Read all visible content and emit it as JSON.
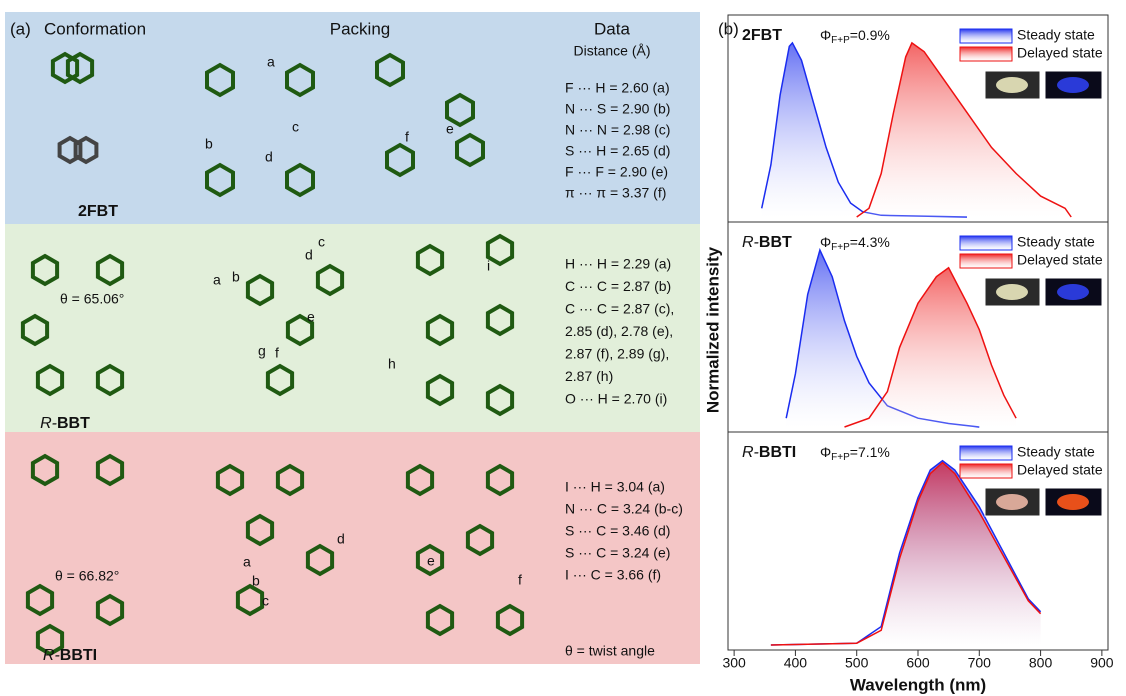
{
  "left": {
    "tag": "(a)",
    "headers": {
      "conformation": "Conformation",
      "packing": "Packing",
      "data": "Data",
      "distance": "Distance (Å)"
    },
    "rows": [
      {
        "label_italic": "",
        "label_bold": "2FBT",
        "angle": "",
        "data": [
          "F ··· H = 2.60 (a)",
          "N ··· S = 2.90 (b)",
          "N ··· N = 2.98 (c)",
          "S ··· H = 2.65 (d)",
          "F ··· F = 2.90 (e)",
          "π ··· π = 3.37 (f)"
        ],
        "contacts": [
          "a",
          "b",
          "c",
          "d",
          "e",
          "f"
        ]
      },
      {
        "label_italic": "R-",
        "label_bold": "BBT",
        "angle": "θ = 65.06°",
        "data": [
          "H ··· H = 2.29 (a)",
          "C ··· C = 2.87 (b)",
          "C ··· C = 2.87 (c),",
          "2.85 (d), 2.78 (e),",
          "2.87 (f), 2.89 (g),",
          "2.87 (h)",
          "O ··· H = 2.70 (i)"
        ],
        "contacts": [
          "a",
          "b",
          "c",
          "d",
          "e",
          "f",
          "g",
          "h",
          "i"
        ]
      },
      {
        "label_italic": "R-",
        "label_bold": "BBTI",
        "angle": "θ = 66.82°",
        "data": [
          "I ··· H = 3.04 (a)",
          "N ··· C = 3.24 (b-c)",
          "S ··· C = 3.46 (d)",
          "S ··· C = 3.24 (e)",
          "I ··· C = 3.66 (f)"
        ],
        "contacts": [
          "a",
          "b",
          "c",
          "d",
          "e",
          "f"
        ]
      }
    ],
    "theta_note": "θ = twist angle"
  },
  "spectra": {
    "tag": "(b)",
    "xlabel": "Wavelength (nm)",
    "ylabel": "Normalized intensity",
    "xlim": [
      290,
      910
    ],
    "xticks": [
      300,
      400,
      500,
      600,
      700,
      800,
      900
    ],
    "ylim": [
      0,
      1.08
    ],
    "legend": [
      "Steady state",
      "Delayed state"
    ],
    "panels": [
      {
        "label_italic": "",
        "label_bold": "2FBT",
        "phi": "Φ",
        "phi_sub": "F+P",
        "phi_value": "=0.9%",
        "series": [
          {
            "color": "#1a2cf0",
            "x": [
              345,
              360,
              375,
              390,
              395,
              410,
              430,
              450,
              470,
              490,
              510,
              540,
              680
            ],
            "values": [
              0.05,
              0.3,
              0.7,
              0.98,
              1,
              0.9,
              0.65,
              0.4,
              0.2,
              0.08,
              0.03,
              0.01,
              0
            ]
          },
          {
            "color": "#ee1111",
            "x": [
              500,
              520,
              540,
              560,
              580,
              590,
              610,
              640,
              680,
              720,
              760,
              800,
              840,
              850
            ],
            "values": [
              0,
              0.05,
              0.25,
              0.6,
              0.92,
              1,
              0.95,
              0.8,
              0.6,
              0.4,
              0.25,
              0.12,
              0.05,
              0
            ]
          }
        ]
      },
      {
        "label_italic": "R-",
        "label_bold": "BBT",
        "phi": "Φ",
        "phi_sub": "F+P",
        "phi_value": "=4.3%",
        "series": [
          {
            "color": "#1a2cf0",
            "x": [
              385,
              400,
              420,
              440,
              460,
              480,
              500,
              520,
              550,
              600,
              650,
              700
            ],
            "values": [
              0.05,
              0.3,
              0.75,
              1,
              0.85,
              0.6,
              0.4,
              0.25,
              0.12,
              0.05,
              0.02,
              0
            ]
          },
          {
            "color": "#ee1111",
            "x": [
              480,
              520,
              550,
              570,
              600,
              630,
              650,
              680,
              700,
              720,
              740,
              760
            ],
            "values": [
              0,
              0.05,
              0.2,
              0.45,
              0.7,
              0.85,
              0.9,
              0.7,
              0.55,
              0.35,
              0.18,
              0.05
            ]
          }
        ]
      },
      {
        "label_italic": "R-",
        "label_bold": "BBTI",
        "phi": "Φ",
        "phi_sub": "F+P",
        "phi_value": "=7.1%",
        "series": [
          {
            "color": "#1a2cf0",
            "x": [
              360,
              500,
              540,
              570,
              600,
              620,
              640,
              660,
              700,
              740,
              780,
              800
            ],
            "values": [
              0,
              0.01,
              0.1,
              0.5,
              0.8,
              0.95,
              1,
              0.95,
              0.75,
              0.5,
              0.25,
              0.18
            ]
          },
          {
            "color": "#ee1111",
            "x": [
              360,
              500,
              540,
              570,
              600,
              620,
              640,
              660,
              700,
              740,
              780,
              800
            ],
            "values": [
              0,
              0.01,
              0.08,
              0.47,
              0.78,
              0.93,
              0.99,
              0.93,
              0.72,
              0.48,
              0.24,
              0.17
            ]
          }
        ]
      }
    ]
  }
}
